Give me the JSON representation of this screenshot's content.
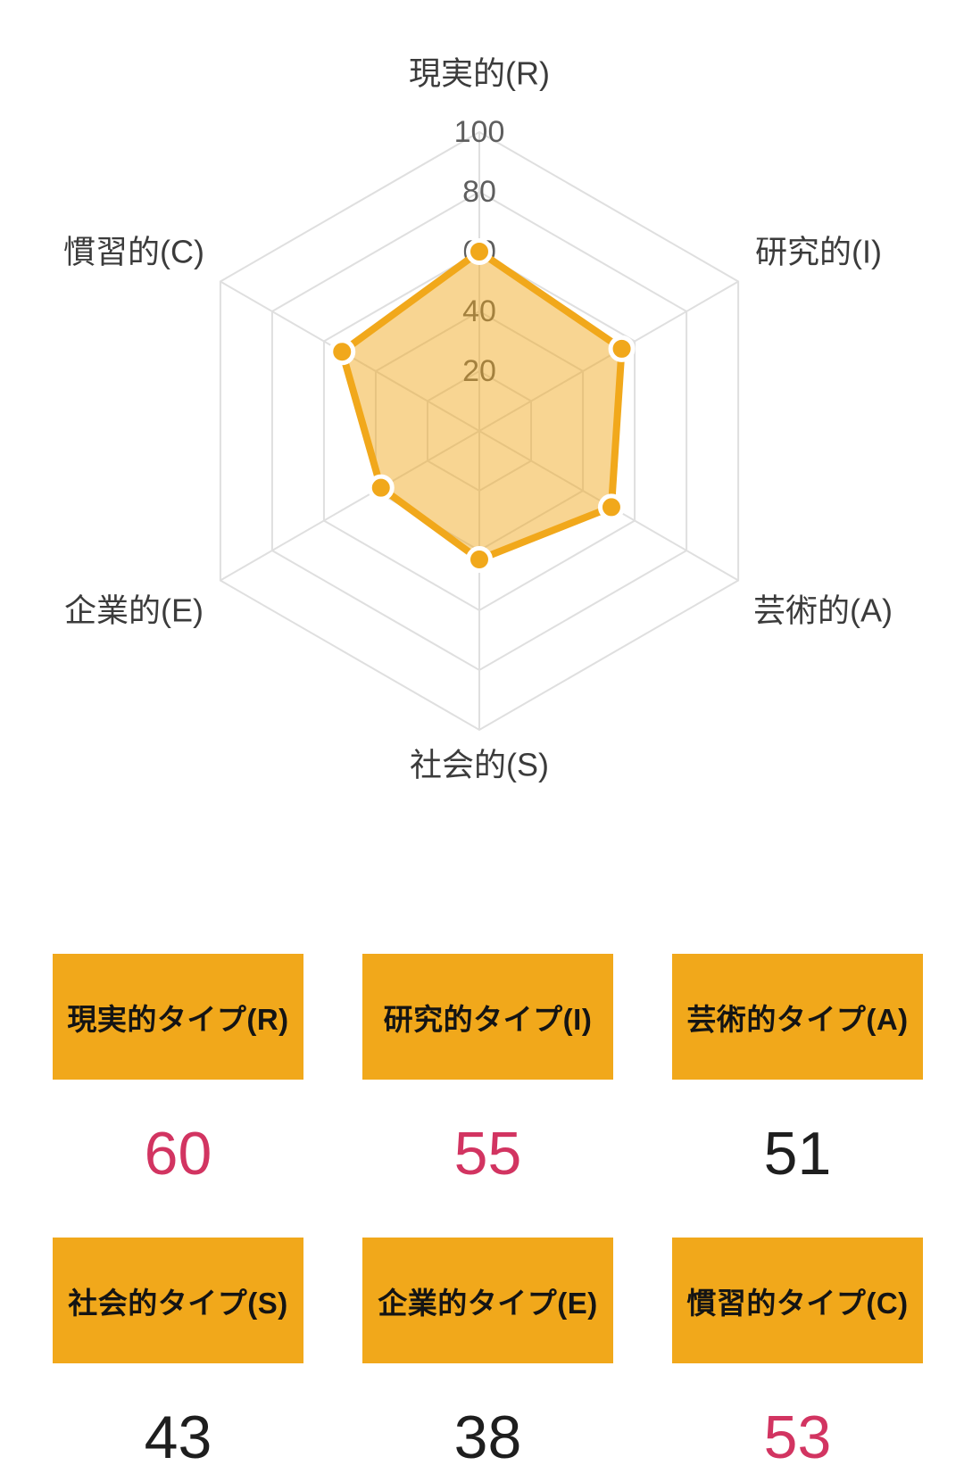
{
  "chart_data": {
    "type": "radar",
    "categories": [
      "現実的(R)",
      "研究的(I)",
      "芸術的(A)",
      "社会的(S)",
      "企業的(E)",
      "慣習的(C)"
    ],
    "values": [
      60,
      55,
      51,
      43,
      38,
      53
    ],
    "rmin": 0,
    "rmax": 100,
    "ticks": [
      20,
      40,
      60,
      80,
      100
    ],
    "grid": true,
    "legend": "none",
    "fill_opacity": 0.48
  },
  "cards": [
    {
      "label": "現実的タイプ(R)",
      "value": "60",
      "highlighted": true
    },
    {
      "label": "研究的タイプ(I)",
      "value": "55",
      "highlighted": true
    },
    {
      "label": "芸術的タイプ(A)",
      "value": "51",
      "highlighted": false
    },
    {
      "label": "社会的タイプ(S)",
      "value": "43",
      "highlighted": false
    },
    {
      "label": "企業的タイプ(E)",
      "value": "38",
      "highlighted": false
    },
    {
      "label": "慣習的タイプ(C)",
      "value": "53",
      "highlighted": true
    }
  ],
  "colors": {
    "amber": "#F1A81B",
    "series": "#F1A81B",
    "highlight": "#D23461",
    "text": "#1E1E1E",
    "grid": "#DFDFDF",
    "tick": "#5E5E5E",
    "axis_label": "#3B3B3B",
    "dot_ring": "#FFFFFF"
  }
}
